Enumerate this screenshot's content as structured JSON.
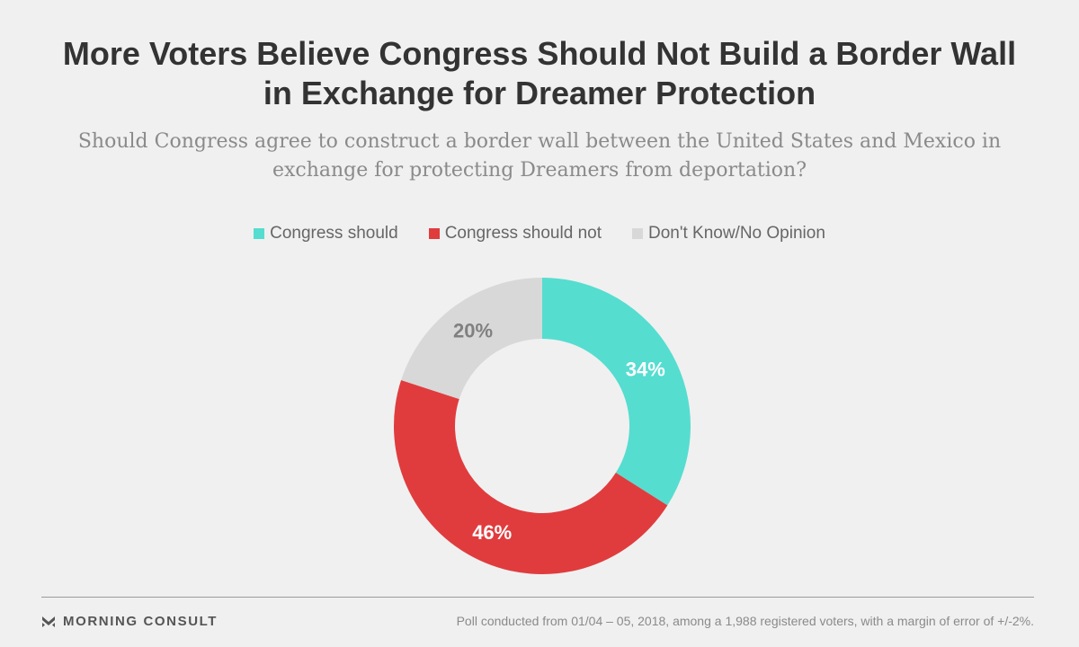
{
  "header": {
    "title": "More Voters Believe Congress Should Not Build a Border Wall in Exchange for Dreamer Protection",
    "subtitle": "Should Congress agree to construct a border wall between the United States and Mexico in exchange for protecting Dreamers from deportation?"
  },
  "chart_data": {
    "type": "pie",
    "title": "More Voters Believe Congress Should Not Build a Border Wall in Exchange for Dreamer Protection",
    "subtitle": "Should Congress agree to construct a border wall between the United States and Mexico in exchange for protecting Dreamers from deportation?",
    "donut": true,
    "legend_position": "top",
    "slices": [
      {
        "label": "Congress should",
        "value": 34,
        "display": "34%",
        "color": "#55ddd0",
        "label_color": "#ffffff"
      },
      {
        "label": "Congress should not",
        "value": 46,
        "display": "46%",
        "color": "#e03c3e",
        "label_color": "#ffffff"
      },
      {
        "label": "Don't Know/No Opinion",
        "value": 20,
        "display": "20%",
        "color": "#d8d8d8",
        "label_color": "#808080"
      }
    ]
  },
  "footer": {
    "brand": "MORNING CONSULT",
    "note": "Poll conducted from 01/04 – 05, 2018, among a 1,988 registered voters, with a margin of error of +/-2%."
  },
  "colors": {
    "background": "#f0f0f0",
    "title": "#333333",
    "subtitle": "#8a8a8a"
  },
  "icons": {
    "brand_logo": "morning-consult-logo-icon"
  }
}
